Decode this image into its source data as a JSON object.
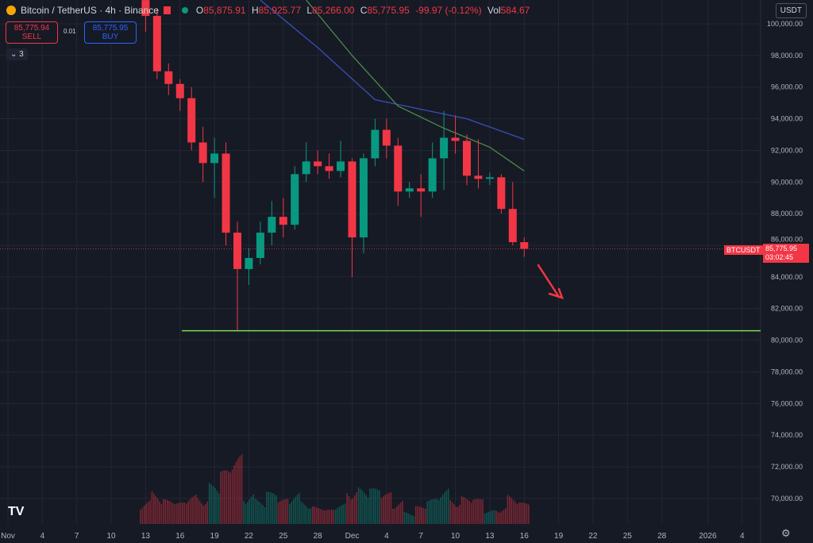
{
  "header": {
    "symbol": "Bitcoin / TetherUS · 4h · Binance",
    "open_label": "O",
    "open": "85,875.91",
    "high_label": "H",
    "high": "85,925.77",
    "low_label": "L",
    "low": "85,266.00",
    "close_label": "C",
    "close": "85,775.95",
    "change": "-99.97 (-0.12%)",
    "vol_label": "Vol",
    "vol": "584.67"
  },
  "trade": {
    "sell_price": "85,775.94",
    "sell_label": "SELL",
    "spread": "0.01",
    "buy_price": "85,775.95",
    "buy_label": "BUY"
  },
  "indicators_toggle": "3",
  "currency": "USDT",
  "price_tag": {
    "symbol": "BTCUSDT",
    "price": "85,775.95",
    "countdown": "03:02:45"
  },
  "colors": {
    "up": "#089981",
    "down": "#f23645",
    "ma_fast": "#3a4fb8",
    "ma_slow": "#4e8a4a",
    "support": "#7ed957",
    "arrow": "#f23645",
    "bg": "#161a25"
  },
  "chart_data": {
    "type": "candlestick",
    "title": "Bitcoin / TetherUS · 4h · Binance",
    "ylim": [
      68000,
      101500
    ],
    "y_ticks": [
      "100,000.00",
      "98,000.00",
      "96,000.00",
      "94,000.00",
      "92,000.00",
      "90,000.00",
      "88,000.00",
      "86,000.00",
      "84,000.00",
      "82,000.00",
      "80,000.00",
      "78,000.00",
      "76,000.00",
      "74,000.00",
      "72,000.00",
      "70,000.00"
    ],
    "x_ticks": [
      {
        "day": 0,
        "label": "Nov"
      },
      {
        "day": 3,
        "label": "4"
      },
      {
        "day": 6,
        "label": "7"
      },
      {
        "day": 9,
        "label": "10"
      },
      {
        "day": 12,
        "label": "13"
      },
      {
        "day": 15,
        "label": "16"
      },
      {
        "day": 18,
        "label": "19"
      },
      {
        "day": 21,
        "label": "22"
      },
      {
        "day": 24,
        "label": "25"
      },
      {
        "day": 27,
        "label": "28"
      },
      {
        "day": 30,
        "label": "Dec"
      },
      {
        "day": 33,
        "label": "4"
      },
      {
        "day": 36,
        "label": "7"
      },
      {
        "day": 39,
        "label": "10"
      },
      {
        "day": 42,
        "label": "13"
      },
      {
        "day": 45,
        "label": "16"
      },
      {
        "day": 48,
        "label": "19"
      },
      {
        "day": 51,
        "label": "22"
      },
      {
        "day": 54,
        "label": "25"
      },
      {
        "day": 57,
        "label": "28"
      },
      {
        "day": 61,
        "label": "2026"
      },
      {
        "day": 64,
        "label": "4"
      }
    ],
    "candles": [
      [
        "Nov 13",
        101500,
        102000,
        99500,
        100500
      ],
      [
        "Nov 14",
        100500,
        101000,
        96500,
        97000
      ],
      [
        "Nov 15",
        97000,
        97500,
        95500,
        96200
      ],
      [
        "Nov 16",
        96200,
        96500,
        94500,
        95300
      ],
      [
        "Nov 17",
        95300,
        96000,
        92000,
        92500
      ],
      [
        "Nov 18",
        92500,
        93500,
        90000,
        91200
      ],
      [
        "Nov 19",
        91200,
        92800,
        89000,
        91800
      ],
      [
        "Nov 20",
        91800,
        92500,
        86000,
        86800
      ],
      [
        "Nov 21",
        86800,
        87500,
        80600,
        84500
      ],
      [
        "Nov 22",
        84500,
        85800,
        83500,
        85200
      ],
      [
        "Nov 23",
        85200,
        87500,
        84800,
        86800
      ],
      [
        "Nov 24",
        86800,
        88800,
        86000,
        87800
      ],
      [
        "Nov 25",
        87800,
        89000,
        86500,
        87300
      ],
      [
        "Nov 26",
        87300,
        91000,
        87000,
        90500
      ],
      [
        "Nov 27",
        90500,
        92500,
        90000,
        91300
      ],
      [
        "Nov 28",
        91300,
        92000,
        90500,
        91000
      ],
      [
        "Nov 29",
        91000,
        91800,
        90200,
        90700
      ],
      [
        "Nov 30",
        90700,
        92600,
        90300,
        91300
      ],
      [
        "Dec 1",
        91300,
        91500,
        84000,
        86500
      ],
      [
        "Dec 2",
        86500,
        91800,
        85500,
        91500
      ],
      [
        "Dec 3",
        91500,
        94000,
        91000,
        93300
      ],
      [
        "Dec 4",
        93300,
        94000,
        91500,
        92300
      ],
      [
        "Dec 5",
        92300,
        92800,
        88500,
        89400
      ],
      [
        "Dec 6",
        89400,
        90000,
        89000,
        89600
      ],
      [
        "Dec 7",
        89600,
        90500,
        87800,
        89400
      ],
      [
        "Dec 8",
        89400,
        92500,
        89000,
        91500
      ],
      [
        "Dec 9",
        91500,
        94500,
        89500,
        92800
      ],
      [
        "Dec 10",
        92800,
        94200,
        91800,
        92600
      ],
      [
        "Dec 11",
        92600,
        93000,
        89800,
        90400
      ],
      [
        "Dec 12",
        90400,
        92700,
        89600,
        90200
      ],
      [
        "Dec 13",
        90200,
        90600,
        89800,
        90300
      ],
      [
        "Dec 14",
        90300,
        90500,
        88000,
        88300
      ],
      [
        "Dec 15",
        88300,
        90000,
        86000,
        86200
      ],
      [
        "Dec 16",
        86200,
        86500,
        85266,
        85776
      ]
    ],
    "volume_relative": [
      40,
      55,
      35,
      30,
      45,
      50,
      60,
      75,
      100,
      55,
      40,
      45,
      35,
      50,
      40,
      25,
      20,
      30,
      65,
      55,
      50,
      45,
      40,
      20,
      25,
      35,
      55,
      45,
      40,
      35,
      20,
      30,
      45,
      30
    ],
    "ma_fast": [
      [
        22,
        101500
      ],
      [
        27,
        98500
      ],
      [
        32,
        95200
      ],
      [
        36,
        94600
      ],
      [
        40,
        94000
      ],
      [
        45,
        92700
      ]
    ],
    "ma_slow": [
      [
        26,
        101500
      ],
      [
        30,
        98000
      ],
      [
        34,
        94800
      ],
      [
        38,
        93400
      ],
      [
        42,
        92200
      ],
      [
        45,
        90700
      ]
    ],
    "support_level": 80600,
    "last_price": 85775.95
  }
}
